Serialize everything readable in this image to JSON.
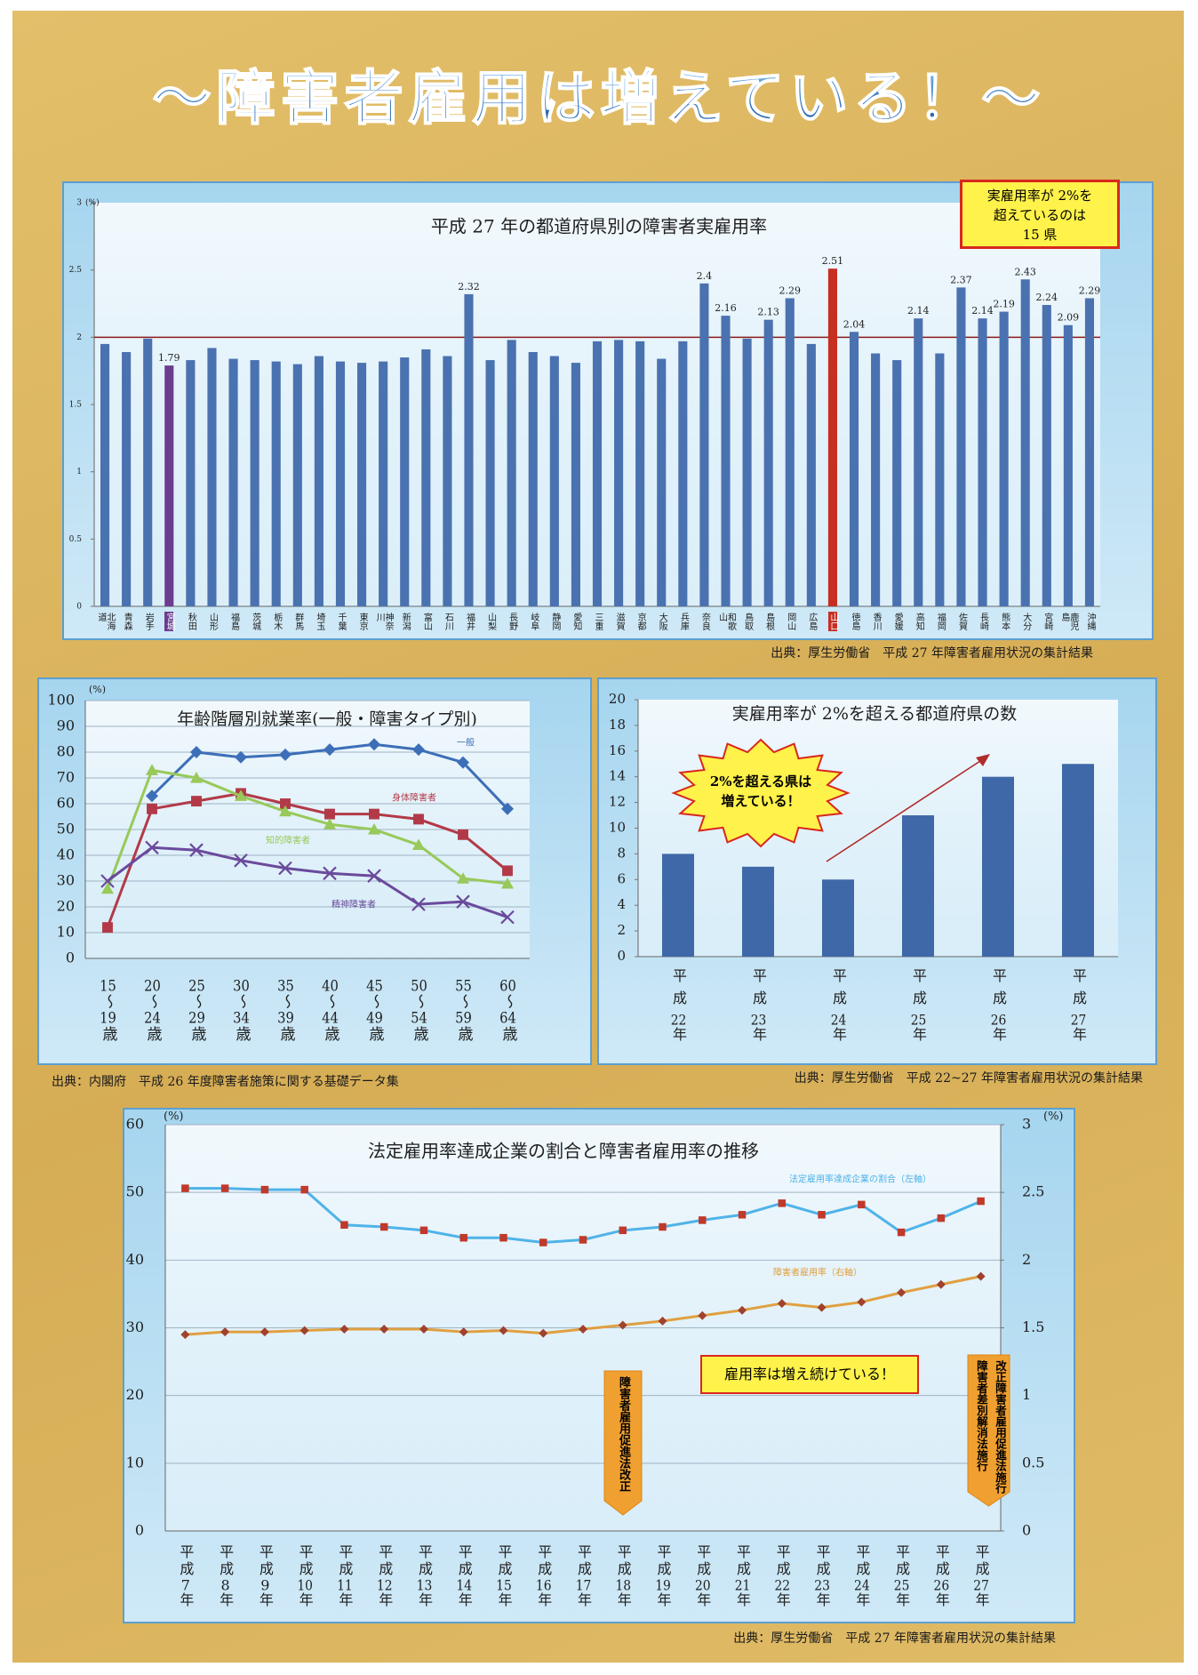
{
  "title": "～障害者雇用は増えている！～",
  "chart_data": [
    {
      "type": "bar",
      "title": "平成 27 年の都道府県別の障害者実雇用率",
      "categories": [
        "北海道",
        "青森",
        "岩手",
        "宮城",
        "秋田",
        "山形",
        "福島",
        "茨城",
        "栃木",
        "群馬",
        "埼玉",
        "千葉",
        "東京",
        "神奈川",
        "新潟",
        "富山",
        "石川",
        "福井",
        "山梨",
        "長野",
        "岐阜",
        "静岡",
        "愛知",
        "三重",
        "滋賀",
        "京都",
        "大阪",
        "兵庫",
        "奈良",
        "和歌山",
        "鳥取",
        "島根",
        "岡山",
        "広島",
        "山口",
        "徳島",
        "香川",
        "愛媛",
        "高知",
        "福岡",
        "佐賀",
        "長崎",
        "熊本",
        "大分",
        "宮崎",
        "鹿児島",
        "沖縄"
      ],
      "values": [
        1.95,
        1.89,
        1.99,
        1.79,
        1.83,
        1.92,
        1.84,
        1.83,
        1.82,
        1.8,
        1.86,
        1.82,
        1.81,
        1.82,
        1.85,
        1.91,
        1.86,
        2.32,
        1.83,
        1.98,
        1.89,
        1.86,
        1.81,
        1.97,
        1.98,
        1.97,
        1.84,
        1.97,
        2.4,
        2.16,
        1.99,
        2.13,
        2.29,
        1.95,
        2.51,
        2.04,
        1.88,
        1.83,
        2.14,
        1.88,
        2.37,
        2.14,
        2.19,
        2.43,
        2.24,
        2.09,
        2.29
      ],
      "color": "#4a72b0",
      "highlight_colors": [
        null,
        null,
        null,
        "#6b3d8e",
        null,
        null,
        null,
        null,
        null,
        null,
        null,
        null,
        null,
        null,
        null,
        null,
        null,
        null,
        null,
        null,
        null,
        null,
        null,
        null,
        null,
        null,
        null,
        null,
        null,
        null,
        null,
        null,
        null,
        null,
        "#c62f22",
        null,
        null,
        null,
        null,
        null,
        null,
        null,
        null,
        null,
        null,
        null,
        null
      ],
      "reference_line": 2,
      "reference_color": "#8b1a1a",
      "ylim": [
        0,
        3
      ],
      "yticks": [
        0,
        0.5,
        1,
        1.5,
        2,
        2.5,
        3
      ],
      "y_unit": "(%)",
      "grid": false,
      "annotation": "実雇用率が 2%を\n超えているのは\n15 県",
      "source": "出典：厚生労働省　平成 27 年障害者雇用状況の集計結果"
    },
    {
      "type": "line",
      "title": "年齢階層別就業率(一般・障害タイプ別)",
      "categories": [
        "15～19歳",
        "20～24歳",
        "25～29歳",
        "30～34歳",
        "35～39歳",
        "40～44歳",
        "45～49歳",
        "50～54歳",
        "55～59歳",
        "60～64歳"
      ],
      "series": [
        {
          "name": "一般",
          "color": "#3d6fb8",
          "marker": "diamond",
          "values": [
            null,
            63,
            80,
            78,
            79,
            81,
            83,
            81,
            76,
            58
          ]
        },
        {
          "name": "身体障害者",
          "color": "#b23a48",
          "marker": "square",
          "values": [
            12,
            58,
            61,
            64,
            60,
            56,
            56,
            54,
            48,
            34
          ]
        },
        {
          "name": "知的障害者",
          "color": "#98c95a",
          "marker": "triangle",
          "values": [
            27,
            73,
            70,
            63,
            57,
            52,
            50,
            44,
            31,
            29
          ]
        },
        {
          "name": "精神障害者",
          "color": "#6a4a9c",
          "marker": "x",
          "values": [
            30,
            43,
            42,
            38,
            35,
            33,
            32,
            21,
            22,
            16
          ]
        }
      ],
      "ylim": [
        0,
        100
      ],
      "yticks": [
        0,
        10,
        20,
        30,
        40,
        50,
        60,
        70,
        80,
        90,
        100
      ],
      "y_unit": "(%)",
      "grid": true,
      "source": "出典：内閣府　平成 26 年度障害者施策に関する基礎データ集"
    },
    {
      "type": "bar",
      "title": "実雇用率が 2%を超える都道府県の数",
      "categories": [
        "平成22年",
        "平成23年",
        "平成24年",
        "平成25年",
        "平成26年",
        "平成27年"
      ],
      "values": [
        8,
        7,
        6,
        11,
        14,
        15
      ],
      "color": "#3f68a8",
      "ylim": [
        0,
        20
      ],
      "yticks": [
        0,
        2,
        4,
        6,
        8,
        10,
        12,
        14,
        16,
        18,
        20
      ],
      "grid": false,
      "annotation": "2%を超える県は\n増えている！",
      "source": "出典：厚生労働省　平成 22~27 年障害者雇用状況の集計結果"
    },
    {
      "type": "line",
      "title": "法定雇用率達成企業の割合と障害者雇用率の推移",
      "categories": [
        "平成7年",
        "平成8年",
        "平成9年",
        "平成10年",
        "平成11年",
        "平成12年",
        "平成13年",
        "平成14年",
        "平成15年",
        "平成16年",
        "平成17年",
        "平成18年",
        "平成19年",
        "平成20年",
        "平成21年",
        "平成22年",
        "平成23年",
        "平成24年",
        "平成25年",
        "平成26年",
        "平成27年"
      ],
      "series": [
        {
          "name": "法定雇用率達成企業の割合（左軸）",
          "color": "#4fb3e8",
          "marker": "square",
          "marker_color": "#c0392b",
          "values": [
            50.6,
            50.6,
            50.4,
            50.4,
            45.2,
            44.9,
            44.4,
            43.3,
            43.3,
            42.6,
            43.0,
            44.4,
            44.9,
            45.9,
            46.7,
            48.4,
            46.7,
            48.2,
            44.1,
            46.2,
            48.7
          ]
        },
        {
          "name": "障害者雇用率（右軸）",
          "color": "#e0a040",
          "marker": "diamond",
          "marker_color": "#a0422d",
          "axis": "y2",
          "values": [
            1.45,
            1.47,
            1.47,
            1.48,
            1.49,
            1.49,
            1.49,
            1.47,
            1.48,
            1.46,
            1.49,
            1.52,
            1.55,
            1.59,
            1.63,
            1.68,
            1.65,
            1.69,
            1.76,
            1.82,
            1.88
          ]
        }
      ],
      "ylim": [
        0,
        60
      ],
      "yticks": [
        0,
        10,
        20,
        30,
        40,
        50,
        60
      ],
      "y_unit": "(%)",
      "y2lim": [
        0,
        3
      ],
      "y2ticks": [
        0,
        0.5,
        1,
        1.5,
        2,
        2.5,
        3
      ],
      "y2_unit": "(%)",
      "grid": true,
      "annotations": [
        "障害者雇用促進法改正",
        "雇用率は増え続けている！",
        "改正障害者雇用促進法施行\n障害者差別解消法施行"
      ],
      "source": "出典：厚生労働省　平成 27 年障害者雇用状況の集計結果"
    }
  ]
}
